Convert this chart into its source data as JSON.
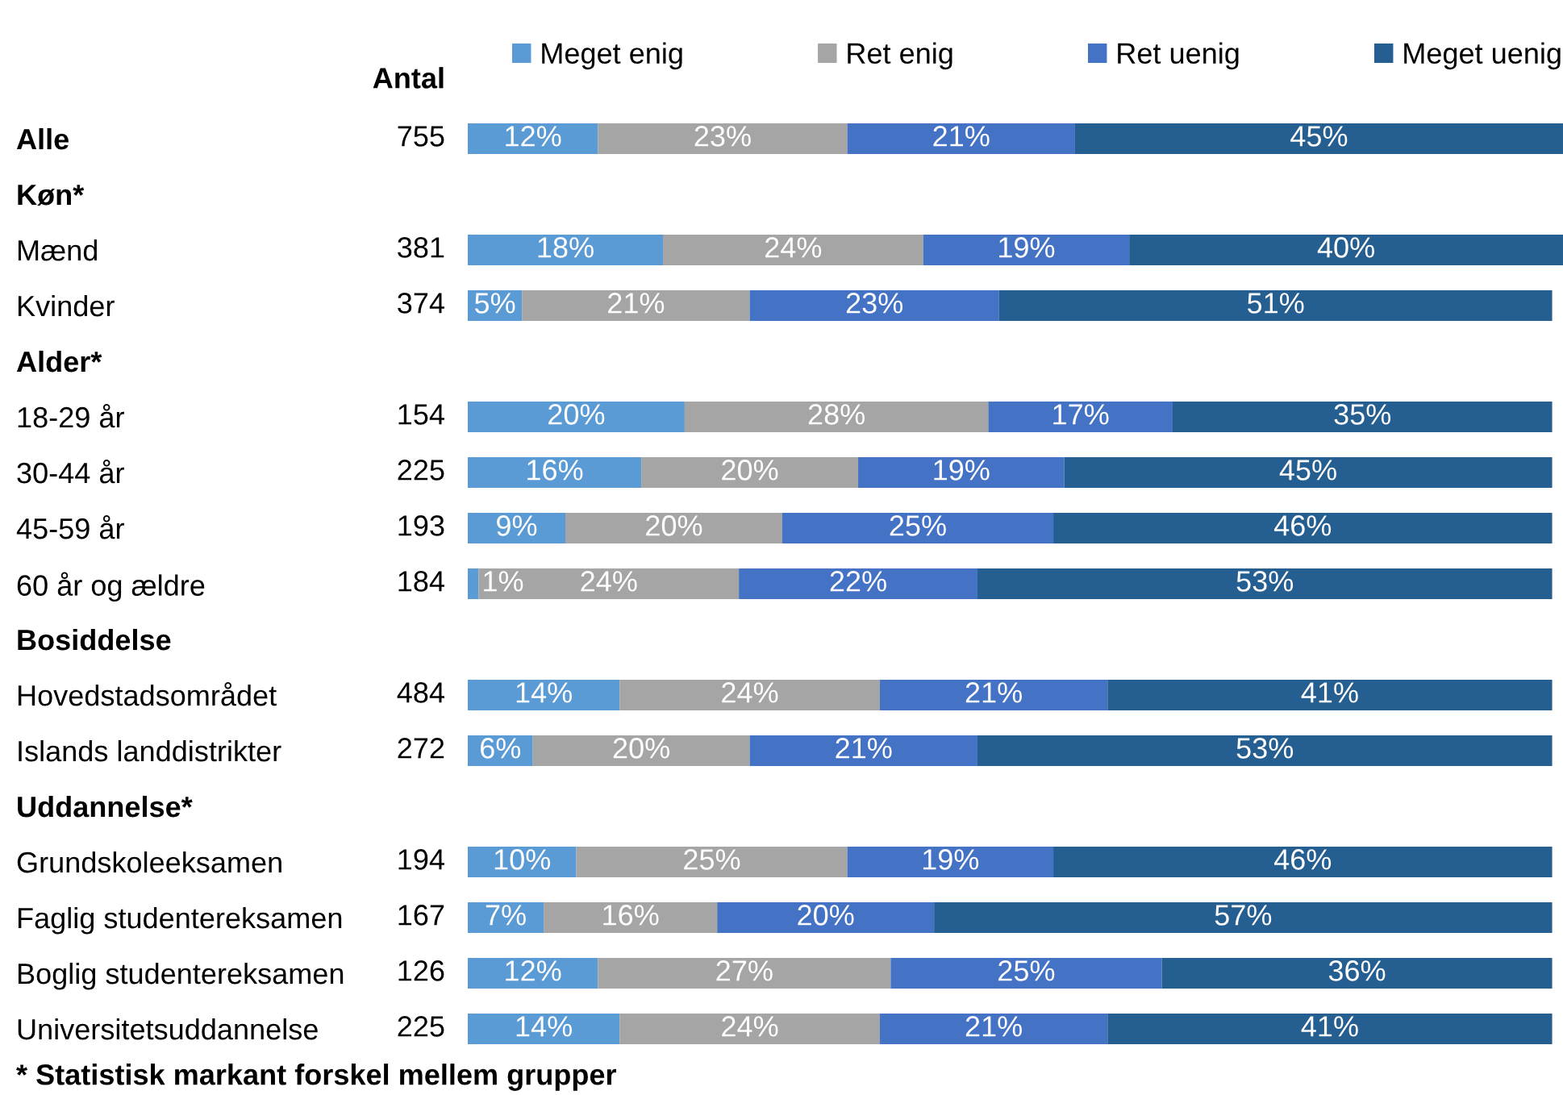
{
  "chart_data": {
    "type": "bar",
    "orientation": "horizontal",
    "stacked": true,
    "legend": "top",
    "tick_labels": "y",
    "categories": [
      "Alle",
      "Køn*",
      "Mænd",
      "Kvinder",
      "Alder*",
      "18-29 år",
      "30-44 år",
      "45-59 år",
      "60 år og ældre",
      "Bosiddelse",
      "Hovedstadsområdet",
      "Islands landdistrikter",
      "Uddannelse*",
      "Grundskoleeksamen",
      "Faglig studentereksamen",
      "Boglig studentereksamen",
      "Universitetsuddannelse"
    ],
    "y2label": "Antal",
    "y2_categories": [
      "755",
      null,
      "381",
      "374",
      null,
      "154",
      "225",
      "193",
      "184",
      null,
      "484",
      "272",
      null,
      "194",
      "167",
      "126",
      "225"
    ],
    "series": [
      {
        "name": "Meget enig",
        "color": "#5b9bd5",
        "values": [
          12,
          null,
          18,
          5,
          null,
          20,
          16,
          9,
          1,
          null,
          14,
          6,
          null,
          10,
          7,
          12,
          14
        ],
        "value_labels": [
          "12%",
          null,
          "18%",
          "5%",
          null,
          "20%",
          "16%",
          "9%",
          "1%",
          null,
          "14%",
          "6%",
          null,
          "10%",
          "7%",
          "12%",
          "14%"
        ]
      },
      {
        "name": "Ret enig",
        "color": "#a5a5a5",
        "values": [
          23,
          null,
          24,
          21,
          null,
          28,
          20,
          20,
          24,
          null,
          24,
          20,
          null,
          25,
          16,
          27,
          24
        ],
        "value_labels": [
          "23%",
          null,
          "24%",
          "21%",
          null,
          "28%",
          "20%",
          "20%",
          "24%",
          null,
          "24%",
          "20%",
          null,
          "25%",
          "16%",
          "27%",
          "24%"
        ]
      },
      {
        "name": "Ret uenig",
        "color": "#4472c4",
        "values": [
          21,
          null,
          19,
          23,
          null,
          17,
          19,
          25,
          22,
          null,
          21,
          21,
          null,
          19,
          20,
          25,
          21
        ],
        "value_labels": [
          "21%",
          null,
          "19%",
          "23%",
          null,
          "17%",
          "19%",
          "25%",
          "22%",
          null,
          "21%",
          "21%",
          null,
          "19%",
          "20%",
          "25%",
          "21%"
        ]
      },
      {
        "name": "Meget uenig",
        "color": "#255e91",
        "values": [
          45,
          null,
          40,
          51,
          null,
          35,
          45,
          46,
          53,
          null,
          41,
          53,
          null,
          46,
          57,
          36,
          41
        ],
        "value_labels": [
          "45%",
          null,
          "40%",
          "51%",
          null,
          "35%",
          "45%",
          "46%",
          "53%",
          null,
          "41%",
          "53%",
          null,
          "46%",
          "57%",
          "36%",
          "41%"
        ]
      }
    ],
    "annotations": [
      "* Statistisk markant forskel mellem grupper"
    ]
  }
}
